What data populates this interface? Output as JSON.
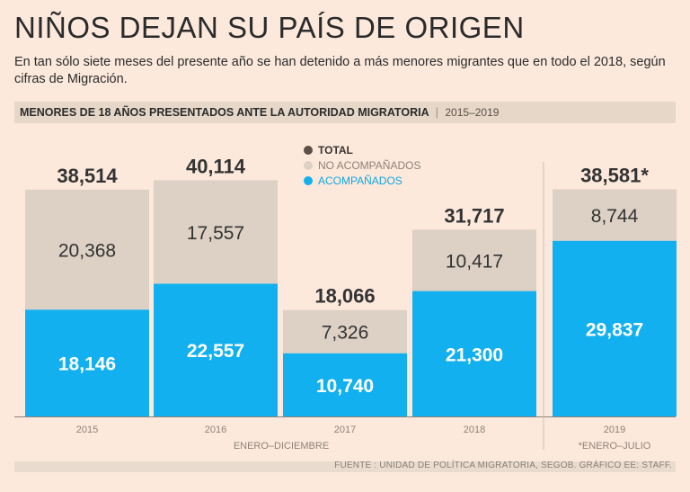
{
  "header": {
    "title": "NIÑOS DEJAN SU PAÍS DE ORIGEN",
    "subtitle": "En tan sólo siete meses del presente año se han detenido a más menores migrantes que en todo el 2018, según cifras de Migración.",
    "band_title": "MENORES DE 18 AÑOS PRESENTADOS ANTE LA AUTORIDAD MIGRATORIA",
    "band_separator": "|",
    "band_range": "2015–2019"
  },
  "legend": {
    "total": "TOTAL",
    "no_acompanados": "NO ACOMPAÑADOS",
    "acompanados": "ACOMPAÑADOS"
  },
  "colors": {
    "total": "#5b4f47",
    "no_acompanados": "#ddd0c4",
    "acompanados": "#12b0ef",
    "axis": "#8e8279",
    "dark_text": "#333333",
    "white_text": "#ffffff"
  },
  "notes": {
    "period_label": "ENERO–DICIEMBRE",
    "partial_label": "*ENERO–JULIO"
  },
  "footer": {
    "source": "FUENTE : UNIDAD DE POLÍTICA MIGRATORIA, SEGOB. GRÁFICO EE: STAFF."
  },
  "chart_data": {
    "type": "bar",
    "stacked": true,
    "categories": [
      "2015",
      "2016",
      "2017",
      "2018",
      "2019"
    ],
    "series": [
      {
        "name": "ACOMPAÑADOS",
        "values": [
          18146,
          22557,
          10740,
          21300,
          29837
        ]
      },
      {
        "name": "NO ACOMPAÑADOS",
        "values": [
          20368,
          17557,
          7326,
          10417,
          8744
        ]
      }
    ],
    "totals": [
      38514,
      40114,
      18066,
      31717,
      38581
    ],
    "value_labels": {
      "acompanados": [
        "18,146",
        "22,557",
        "10,740",
        "21,300",
        "29,837"
      ],
      "no_acompanados": [
        "20,368",
        "17,557",
        "7,326",
        "10,417",
        "8,744"
      ],
      "totals": [
        "38,514",
        "40,114",
        "18,066",
        "31,717",
        "38,581*"
      ]
    },
    "ylim": [
      0,
      41000
    ],
    "title": "MENORES DE 18 AÑOS PRESENTADOS ANTE LA AUTORIDAD MIGRATORIA",
    "xlabel": "",
    "ylabel": ""
  }
}
